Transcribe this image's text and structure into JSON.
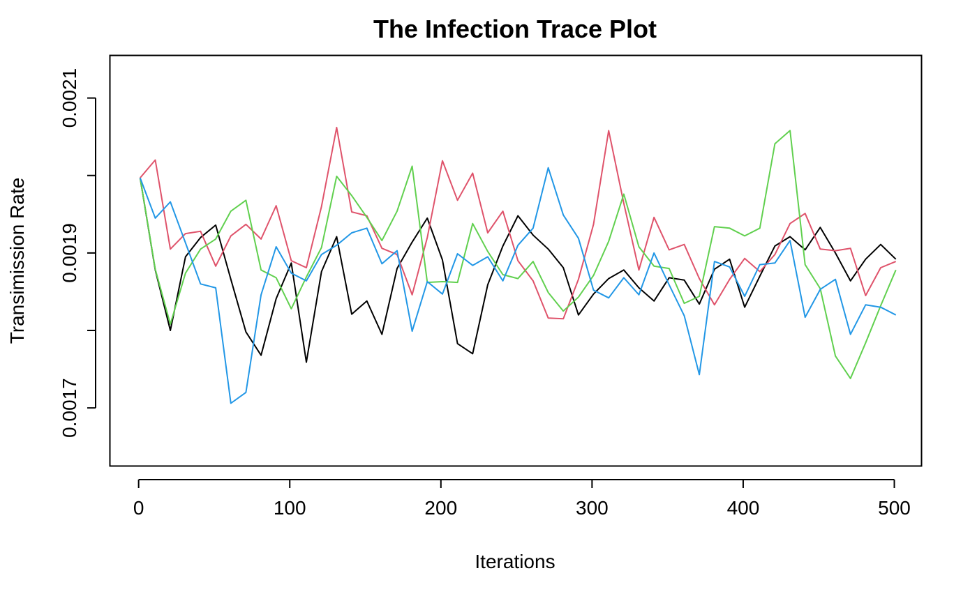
{
  "chart_data": {
    "type": "line",
    "title": "The Infection Trace Plot",
    "xlabel": "Iterations",
    "ylabel": "Transimission Rate",
    "xlim": [
      -19,
      518
    ],
    "ylim": [
      0.001625,
      0.002155
    ],
    "grid": false,
    "legend": "none",
    "x_ticks": [
      0,
      100,
      200,
      300,
      400,
      500
    ],
    "x_tick_labels": [
      "0",
      "100",
      "200",
      "300",
      "400",
      "500"
    ],
    "y_ticks": [
      0.0017,
      0.0019,
      0.0021
    ],
    "y_tick_labels": [
      "0.0017",
      "0.0019",
      "0.0021"
    ],
    "y_minor_ticks": [
      0.0018,
      0.002
    ],
    "x_start": 1,
    "x_step": 10,
    "series": [
      {
        "color": "#000000",
        "values": [
          0.001997,
          0.001878,
          0.0018,
          0.001895,
          0.00192,
          0.001936,
          0.001866,
          0.001798,
          0.001768,
          0.001841,
          0.001887,
          0.001759,
          0.001876,
          0.001921,
          0.001821,
          0.001838,
          0.001795,
          0.00188,
          0.001914,
          0.001945,
          0.001891,
          0.001783,
          0.00177,
          0.001859,
          0.001909,
          0.001948,
          0.001923,
          0.001905,
          0.001881,
          0.00182,
          0.001847,
          0.001867,
          0.001878,
          0.001855,
          0.001838,
          0.001868,
          0.001865,
          0.001834,
          0.001879,
          0.001892,
          0.00183,
          0.00187,
          0.001909,
          0.001921,
          0.001904,
          0.001933,
          0.0019,
          0.001864,
          0.001892,
          0.001911,
          0.001892
        ]
      },
      {
        "color": "#DF536B",
        "values": [
          0.001997,
          0.00202,
          0.001905,
          0.001925,
          0.001928,
          0.001883,
          0.001922,
          0.001937,
          0.001918,
          0.001961,
          0.00189,
          0.001881,
          0.00196,
          0.002062,
          0.001953,
          0.001948,
          0.001906,
          0.001898,
          0.001846,
          0.00192,
          0.002019,
          0.001968,
          0.002003,
          0.001926,
          0.001954,
          0.00189,
          0.001864,
          0.001816,
          0.001815,
          0.001866,
          0.001937,
          0.002058,
          0.001964,
          0.001878,
          0.001946,
          0.001904,
          0.001911,
          0.001867,
          0.001833,
          0.001866,
          0.001893,
          0.001876,
          0.001898,
          0.001938,
          0.001951,
          0.001905,
          0.001903,
          0.001906,
          0.001845,
          0.001881,
          0.001889
        ]
      },
      {
        "color": "#61D04F",
        "values": [
          0.001997,
          0.001879,
          0.001808,
          0.001874,
          0.001905,
          0.001918,
          0.001954,
          0.001968,
          0.001878,
          0.001868,
          0.001828,
          0.001869,
          0.001907,
          0.001999,
          0.001974,
          0.001946,
          0.001916,
          0.001954,
          0.002012,
          0.001862,
          0.001863,
          0.001862,
          0.001938,
          0.001902,
          0.001872,
          0.001867,
          0.001889,
          0.001849,
          0.001825,
          0.001843,
          0.001871,
          0.001915,
          0.001976,
          0.001908,
          0.001883,
          0.00188,
          0.001835,
          0.001844,
          0.001934,
          0.001932,
          0.001922,
          0.001932,
          0.002041,
          0.002058,
          0.001885,
          0.001854,
          0.001767,
          0.001738,
          0.001784,
          0.001832,
          0.001878
        ]
      },
      {
        "color": "#2297E6",
        "values": [
          0.001997,
          0.001945,
          0.001966,
          0.001913,
          0.00186,
          0.001855,
          0.001706,
          0.00172,
          0.001846,
          0.001908,
          0.001874,
          0.001864,
          0.001898,
          0.00191,
          0.001926,
          0.001932,
          0.001886,
          0.001903,
          0.001799,
          0.001863,
          0.001847,
          0.001899,
          0.001884,
          0.001895,
          0.001864,
          0.00191,
          0.001932,
          0.00201,
          0.001949,
          0.001919,
          0.001852,
          0.001842,
          0.001868,
          0.001846,
          0.0019,
          0.001859,
          0.001819,
          0.001743,
          0.001889,
          0.001882,
          0.001844,
          0.001885,
          0.001887,
          0.001916,
          0.001817,
          0.001853,
          0.001866,
          0.001795,
          0.001833,
          0.00183,
          0.00182
        ]
      }
    ]
  }
}
